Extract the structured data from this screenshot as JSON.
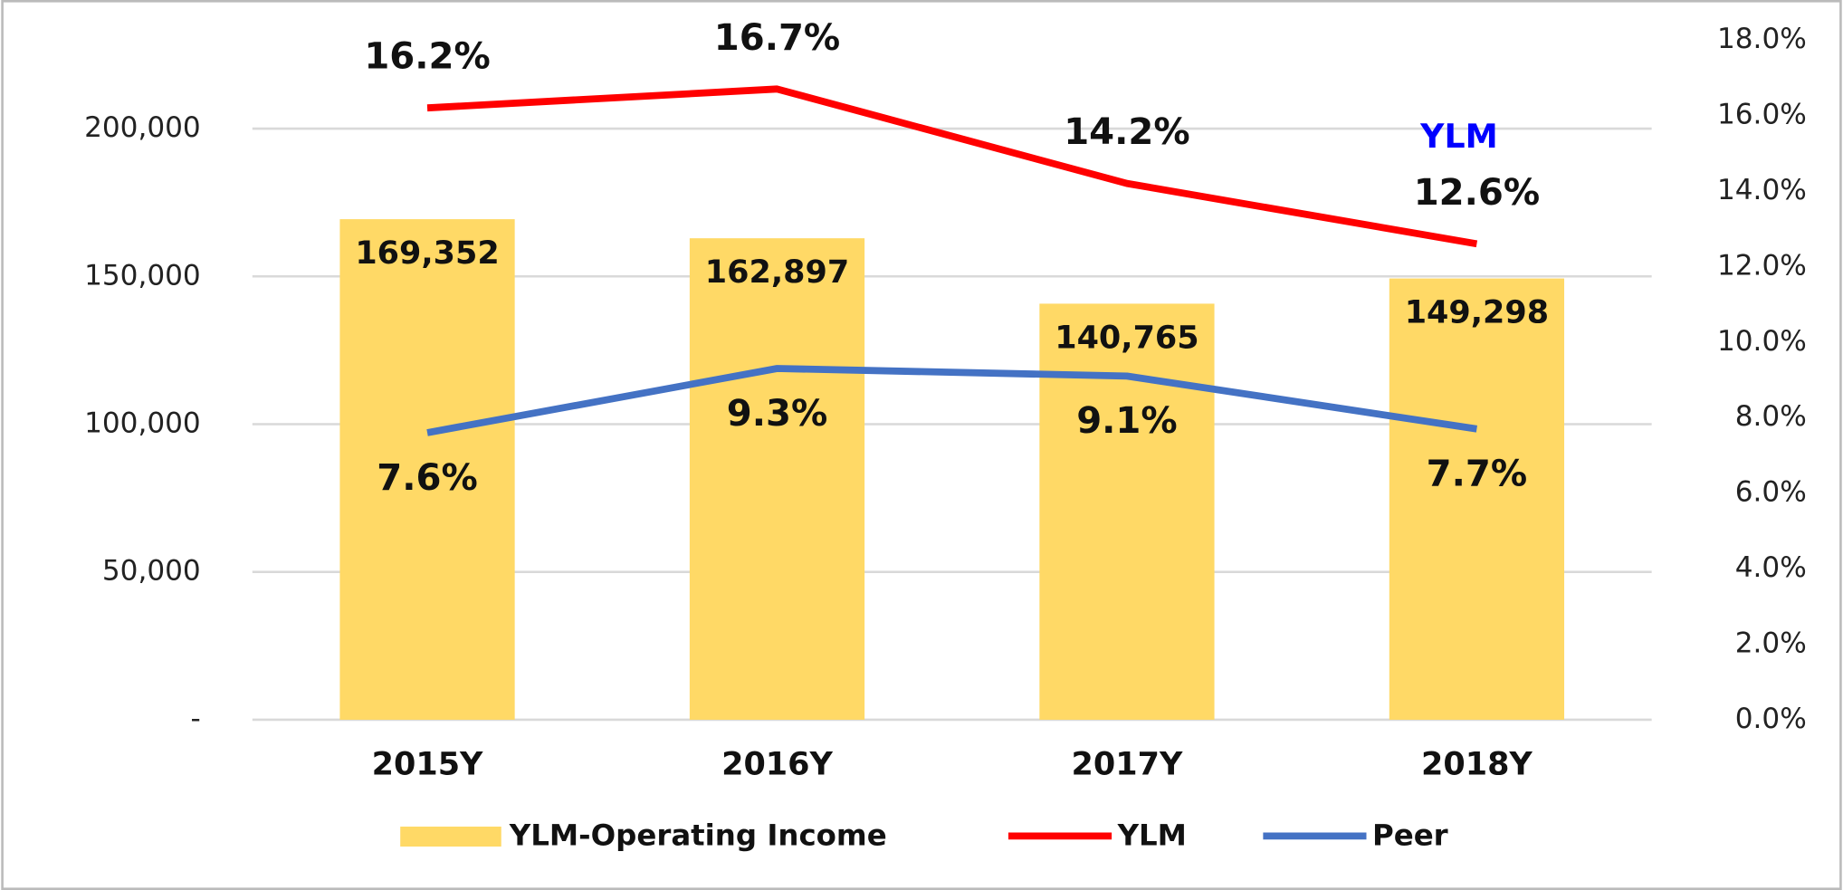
{
  "chart_data": {
    "type": "bar",
    "categories": [
      "2015Y",
      "2016Y",
      "2017Y",
      "2018Y"
    ],
    "series": [
      {
        "name": "YLM-Operating Income",
        "type": "bar",
        "color": "#ffd966",
        "values": [
          169352,
          162897,
          140765,
          149298
        ],
        "value_labels": [
          "169,352",
          "162,897",
          "140,765",
          "149,298"
        ]
      },
      {
        "name": "YLM",
        "type": "line",
        "axis": "y2",
        "color": "#ff0000",
        "values": [
          16.2,
          16.7,
          14.2,
          12.6
        ],
        "value_labels": [
          "16.2%",
          "16.7%",
          "14.2%",
          "12.6%"
        ]
      },
      {
        "name": "Peer",
        "type": "line",
        "axis": "y2",
        "color": "#4472c4",
        "values": [
          7.6,
          9.3,
          9.1,
          7.7
        ],
        "value_labels": [
          "7.6%",
          "9.3%",
          "9.1%",
          "7.7%"
        ]
      }
    ],
    "annotations": [
      {
        "text": "YLM",
        "color": "#0000ff"
      }
    ],
    "ylim": [
      0,
      230000
    ],
    "yticks": [
      {
        "value": 0,
        "label": "-"
      },
      {
        "value": 50000,
        "label": "50,000"
      },
      {
        "value": 100000,
        "label": "100,000"
      },
      {
        "value": 150000,
        "label": "150,000"
      },
      {
        "value": 200000,
        "label": "200,000"
      }
    ],
    "y2lim": [
      0,
      18
    ],
    "y2ticks": [
      {
        "value": 0,
        "label": "0.0%"
      },
      {
        "value": 2,
        "label": "2.0%"
      },
      {
        "value": 4,
        "label": "4.0%"
      },
      {
        "value": 6,
        "label": "6.0%"
      },
      {
        "value": 8,
        "label": "8.0%"
      },
      {
        "value": 10,
        "label": "10.0%"
      },
      {
        "value": 12,
        "label": "12.0%"
      },
      {
        "value": 14,
        "label": "14.0%"
      },
      {
        "value": 16,
        "label": "16.0%"
      },
      {
        "value": 18,
        "label": "18.0%"
      }
    ],
    "grid": true
  }
}
